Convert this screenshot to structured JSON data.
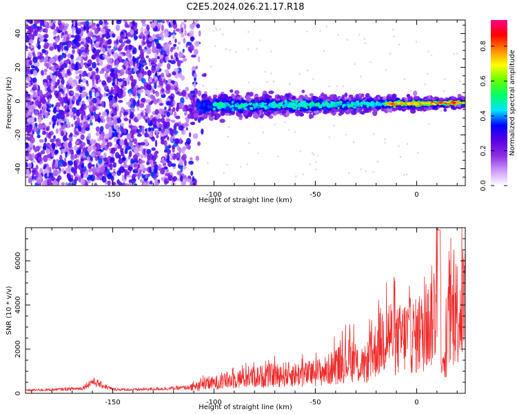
{
  "title": "C2E5.2024.026.21.17.R18",
  "chart_data": [
    {
      "type": "heatmap",
      "name": "spectrogram",
      "title": "C2E5.2024.026.21.17.R18",
      "xlabel": "Height of straight line (km)",
      "ylabel": "Frequency (Hz)",
      "xlim": [
        -193,
        24
      ],
      "ylim": [
        -50,
        48
      ],
      "x_ticks": [
        -150,
        -100,
        -50,
        0
      ],
      "x_tick_labels": [
        "-150",
        "-100",
        "-50",
        "0"
      ],
      "y_ticks": [
        -40,
        -20,
        0,
        20,
        40
      ],
      "y_tick_labels": [
        "-40",
        "-20",
        "0",
        "20",
        "40"
      ],
      "grid": false,
      "colorbar": {
        "label": "Normalized spectral amplitude",
        "range": [
          0.0,
          0.95
        ],
        "ticks": [
          0.0,
          0.2,
          0.4,
          0.6,
          0.8
        ],
        "tick_labels": [
          "0.0",
          "0.2",
          "0.4",
          "0.6",
          "0.8"
        ],
        "colormap": [
          "#ffffff",
          "#cc99ff",
          "#8a2be2",
          "#5a00e6",
          "#0000ff",
          "#00e5ff",
          "#00ff66",
          "#66ff00",
          "#ffff00",
          "#ff8800",
          "#ff0000",
          "#ff0088"
        ]
      },
      "features": {
        "noise_region_x": [
          -193,
          -110
        ],
        "noise_freq_range": [
          -50,
          48
        ],
        "signal_start_x": -112,
        "signal_center_freq_start": -3,
        "signal_center_freq_end": -1,
        "signal_halfwidth_start": 8,
        "signal_halfwidth_end": 3,
        "strong_core_start_x": -15
      }
    },
    {
      "type": "line",
      "name": "snr",
      "xlabel": "Height of straight line (km)",
      "ylabel": "SNR (10 * v/v)",
      "xlim": [
        -193,
        24
      ],
      "ylim": [
        0,
        7500
      ],
      "x_ticks": [
        -150,
        -100,
        -50,
        0
      ],
      "x_tick_labels": [
        "-150",
        "-100",
        "-50",
        "0"
      ],
      "y_ticks": [
        0,
        2000,
        4000,
        6000
      ],
      "y_tick_labels": [
        "0",
        "2000",
        "4000",
        "6000"
      ],
      "grid": false,
      "series": [
        {
          "color": "#ee2a2a",
          "x": [
            -193,
            -180,
            -165,
            -160,
            -150,
            -140,
            -120,
            -112,
            -105,
            -95,
            -85,
            -75,
            -65,
            -55,
            -45,
            -38,
            -32,
            -27,
            -22,
            -18,
            -14,
            -10,
            -5,
            0,
            5,
            9,
            10,
            11,
            13,
            16,
            20,
            24
          ],
          "values": [
            150,
            180,
            250,
            600,
            200,
            180,
            250,
            300,
            500,
            700,
            900,
            1000,
            1100,
            1100,
            1300,
            1700,
            2000,
            1400,
            2200,
            3000,
            3600,
            3000,
            3400,
            3300,
            3700,
            5000,
            6000,
            7500,
            1000,
            4300,
            4800,
            5200
          ]
        }
      ]
    }
  ]
}
